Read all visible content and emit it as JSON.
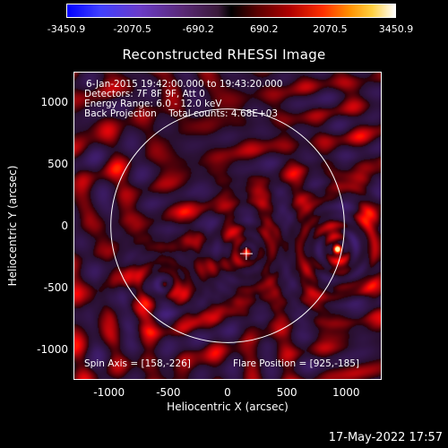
{
  "chart_data": {
    "type": "heatmap",
    "title": "Reconstructed RHESSI Image",
    "xlabel": "Heliocentric X (arcsec)",
    "ylabel": "Heliocentric Y (arcsec)",
    "xlim": [
      -1300,
      1300
    ],
    "ylim": [
      -1250,
      1250
    ],
    "x_ticks": [
      "-1000",
      "-500",
      "0",
      "500",
      "1000"
    ],
    "x_tick_values": [
      -1000,
      -500,
      0,
      500,
      1000
    ],
    "y_ticks": [
      "1000",
      "500",
      "0",
      "-500",
      "-1000"
    ],
    "y_tick_values": [
      1000,
      500,
      0,
      -500,
      -1000
    ],
    "colorbar": {
      "ticks": [
        "-3450.9",
        "-2070.5",
        "-690.2",
        "690.2",
        "2070.5",
        "3450.9"
      ],
      "tick_values": [
        -3450.9,
        -2070.5,
        -690.2,
        690.2,
        2070.5,
        3450.9
      ],
      "min": -3450.9,
      "max": 3450.9
    },
    "solar_limb_radius_arcsec": 985,
    "sources": [
      {
        "x": 925,
        "y": -185,
        "intensity": 3450.9
      },
      {
        "x": 160,
        "y": -210,
        "intensity": 2070.5
      },
      {
        "x": -540,
        "y": -470,
        "intensity": 1500
      }
    ],
    "spin_axis_marker": {
      "x": 158,
      "y": -226
    },
    "annotations": [
      "6-Jan-2015 19:42:00.000 to 19:43:20.000",
      "Detectors: 7F 8F 9F, Att 0",
      "Energy Range: 6.0 - 12.0 keV",
      "Back Projection    Total counts: 4.68E+03"
    ],
    "footer_left": "Spin Axis = [158,-226]",
    "footer_right": "Flare Position = [925,-185]",
    "colors": {
      "limb": "#ffffff",
      "positive": "#ff2000",
      "negative": "#5a2a8a"
    }
  },
  "timestamp": "17-May-2022 17:57"
}
